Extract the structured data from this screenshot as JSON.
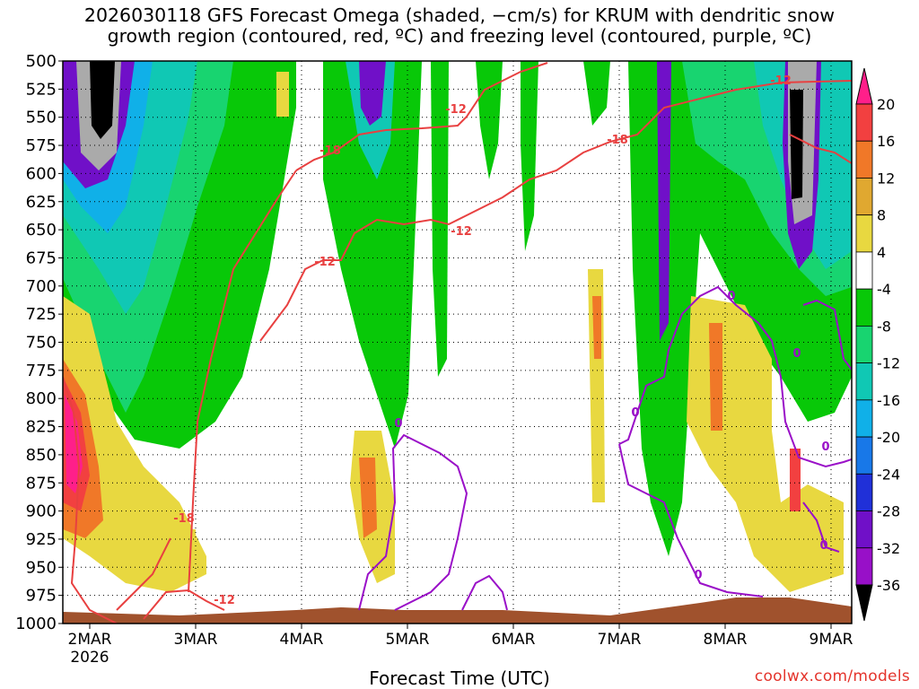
{
  "header": {
    "title_line1": "2026030118 GFS Forecast Omega (shaded, −cm/s) for KRUM with dendritic snow",
    "title_line2": "growth region (contoured, red, ºC) and freezing level (contoured, purple, ºC)"
  },
  "footer": {
    "xlabel": "Forecast Time (UTC)",
    "credit": "coolwx.com/models"
  },
  "chart_data": {
    "type": "heatmap",
    "title": "2026030118 GFS Forecast Omega (shaded, −cm/s) for KRUM with dendritic snow growth region (contoured, red, ºC) and freezing level (contoured, purple, ºC)",
    "xlabel": "Forecast Time (UTC)",
    "ylabel": "",
    "y_axis": {
      "ticks": [
        500,
        525,
        550,
        575,
        600,
        625,
        650,
        675,
        700,
        725,
        750,
        775,
        800,
        825,
        850,
        875,
        900,
        925,
        950,
        975,
        1000
      ],
      "range": [
        500,
        1000
      ],
      "inverted": true
    },
    "x_axis": {
      "ticks": [
        "2MAR",
        "3MAR",
        "4MAR",
        "5MAR",
        "6MAR",
        "7MAR",
        "8MAR",
        "9MAR"
      ],
      "first_tick_sublabel": "2026"
    },
    "grid": true,
    "colorbar": {
      "ticks": [
        20,
        16,
        12,
        8,
        4,
        -4,
        -8,
        -12,
        -16,
        -20,
        -24,
        -28,
        -32,
        -36
      ],
      "colors": [
        "#ff1f8a",
        "#f24040",
        "#f07828",
        "#e0a830",
        "#e8d840",
        "#ffffff",
        "#08c808",
        "#18d470",
        "#10c8b4",
        "#10b0e8",
        "#1878e8",
        "#2030d8",
        "#7010c8",
        "#9810c8",
        "#aaaaaa",
        "#000000"
      ]
    },
    "contours": [
      {
        "name": "dendritic snow growth region",
        "color": "#e84040",
        "labels": [
          "-18",
          "-18",
          "-12",
          "-12",
          "-18",
          "-12",
          "-12",
          "-12"
        ]
      },
      {
        "name": "freezing level",
        "color": "#9a10c8",
        "labels": [
          "0",
          "0",
          "0",
          "0",
          "0",
          "0",
          "0",
          "0"
        ]
      }
    ]
  }
}
